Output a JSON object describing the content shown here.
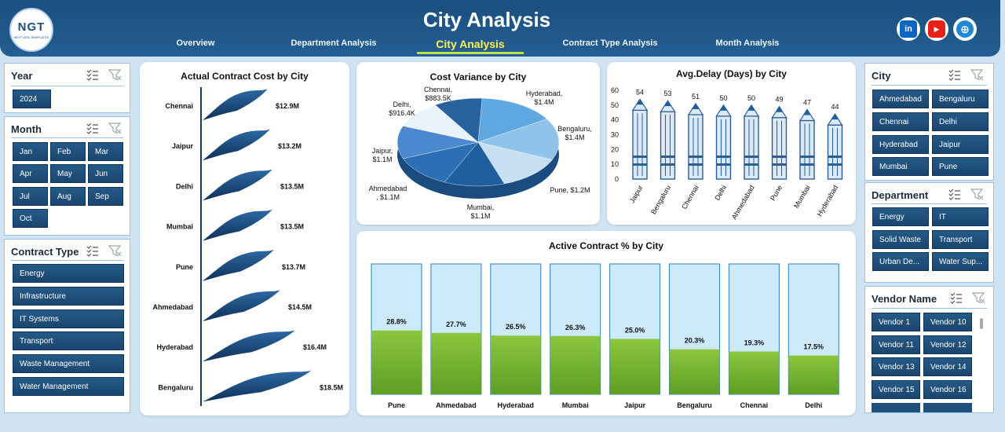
{
  "header": {
    "logo_text": "NGT",
    "logo_sub": "NEXT GEN TEMPLATES",
    "title": "City Analysis",
    "tabs": [
      "Overview",
      "Department Analysis",
      "City Analysis",
      "Contract Type Analysis",
      "Month Analysis"
    ],
    "social": [
      "in",
      "▶",
      "⊕"
    ]
  },
  "slicers": {
    "year": {
      "title": "Year",
      "items": [
        "2024"
      ]
    },
    "month": {
      "title": "Month",
      "items": [
        "Jan",
        "Feb",
        "Mar",
        "Apr",
        "May",
        "Jun",
        "Jul",
        "Aug",
        "Sep",
        "Oct"
      ]
    },
    "contract_type": {
      "title": "Contract Type",
      "items": [
        "Energy",
        "Infrastructure",
        "IT Systems",
        "Transport",
        "Waste Management",
        "Water Management"
      ]
    },
    "city": {
      "title": "City",
      "items": [
        "Ahmedabad",
        "Bengaluru",
        "Chennai",
        "Delhi",
        "Hyderabad",
        "Jaipur",
        "Mumbai",
        "Pune"
      ]
    },
    "department": {
      "title": "Department",
      "items": [
        "Energy",
        "IT",
        "Solid Waste",
        "Transport",
        "Urban De...",
        "Water Sup..."
      ]
    },
    "vendor": {
      "title": "Vendor Name",
      "items": [
        "Vendor 1",
        "Vendor 10",
        "Vendor 11",
        "Vendor 12",
        "Vendor 13",
        "Vendor 14",
        "Vendor 15",
        "Vendor 16"
      ]
    }
  },
  "chart_data": [
    {
      "type": "bar",
      "title": "Actual Contract Cost by City",
      "categories": [
        "Chennai",
        "Jaipur",
        "Delhi",
        "Mumbai",
        "Pune",
        "Ahmedabad",
        "Hyderabad",
        "Bengaluru"
      ],
      "values": [
        12.9,
        13.2,
        13.5,
        13.5,
        13.7,
        14.5,
        16.4,
        18.5
      ],
      "labels": [
        "$12.9M",
        "$13.2M",
        "$13.5M",
        "$13.5M",
        "$13.7M",
        "$14.5M",
        "$16.4M",
        "$18.5M"
      ],
      "unit": "$M"
    },
    {
      "type": "pie",
      "title": "Cost Variance by City",
      "categories": [
        "Hyderabad",
        "Bengaluru",
        "Pune",
        "Mumbai",
        "Ahmedabad",
        "Jaipur",
        "Delhi",
        "Chennai"
      ],
      "values": [
        1.4,
        1.4,
        1.2,
        1.1,
        1.1,
        1.1,
        0.9164,
        0.8835
      ],
      "labels": [
        "Hyderabad,\n$1.4M",
        "Bengaluru,\n$1.4M",
        "Pune, $1.2M",
        "Mumbai,\n$1.1M",
        "Ahmedabad\n, $1.1M",
        "Jaipur,\n$1.1M",
        "Delhi,\n$916.4K",
        "Chennai,\n$883.5K"
      ]
    },
    {
      "type": "bar",
      "title": "Avg.Delay (Days) by City",
      "categories": [
        "Jaipur",
        "Bengaluru",
        "Chennai",
        "Delhi",
        "Ahmedabad",
        "Pune",
        "Mumbai",
        "Hyderabad"
      ],
      "values": [
        54,
        53,
        51,
        50,
        50,
        49,
        47,
        44
      ],
      "yticks": [
        0,
        10,
        20,
        30,
        40,
        50,
        60
      ],
      "ylim": [
        0,
        60
      ]
    },
    {
      "type": "bar",
      "title": "Active Contract % by City",
      "categories": [
        "Pune",
        "Ahmedabad",
        "Hyderabad",
        "Mumbai",
        "Jaipur",
        "Bengaluru",
        "Chennai",
        "Delhi"
      ],
      "values": [
        28.8,
        27.7,
        26.5,
        26.3,
        25.0,
        20.3,
        19.3,
        17.5
      ],
      "labels": [
        "28.8%",
        "27.7%",
        "26.5%",
        "26.3%",
        "25.0%",
        "20.3%",
        "19.3%",
        "17.5%"
      ],
      "ylim": [
        0,
        100
      ]
    }
  ],
  "colors": {
    "header": "#1a4f7f",
    "chip": "#1f4f7a",
    "accent": "#fff64d",
    "green": "#7dbb2e",
    "lightblue": "#cdeafb"
  }
}
